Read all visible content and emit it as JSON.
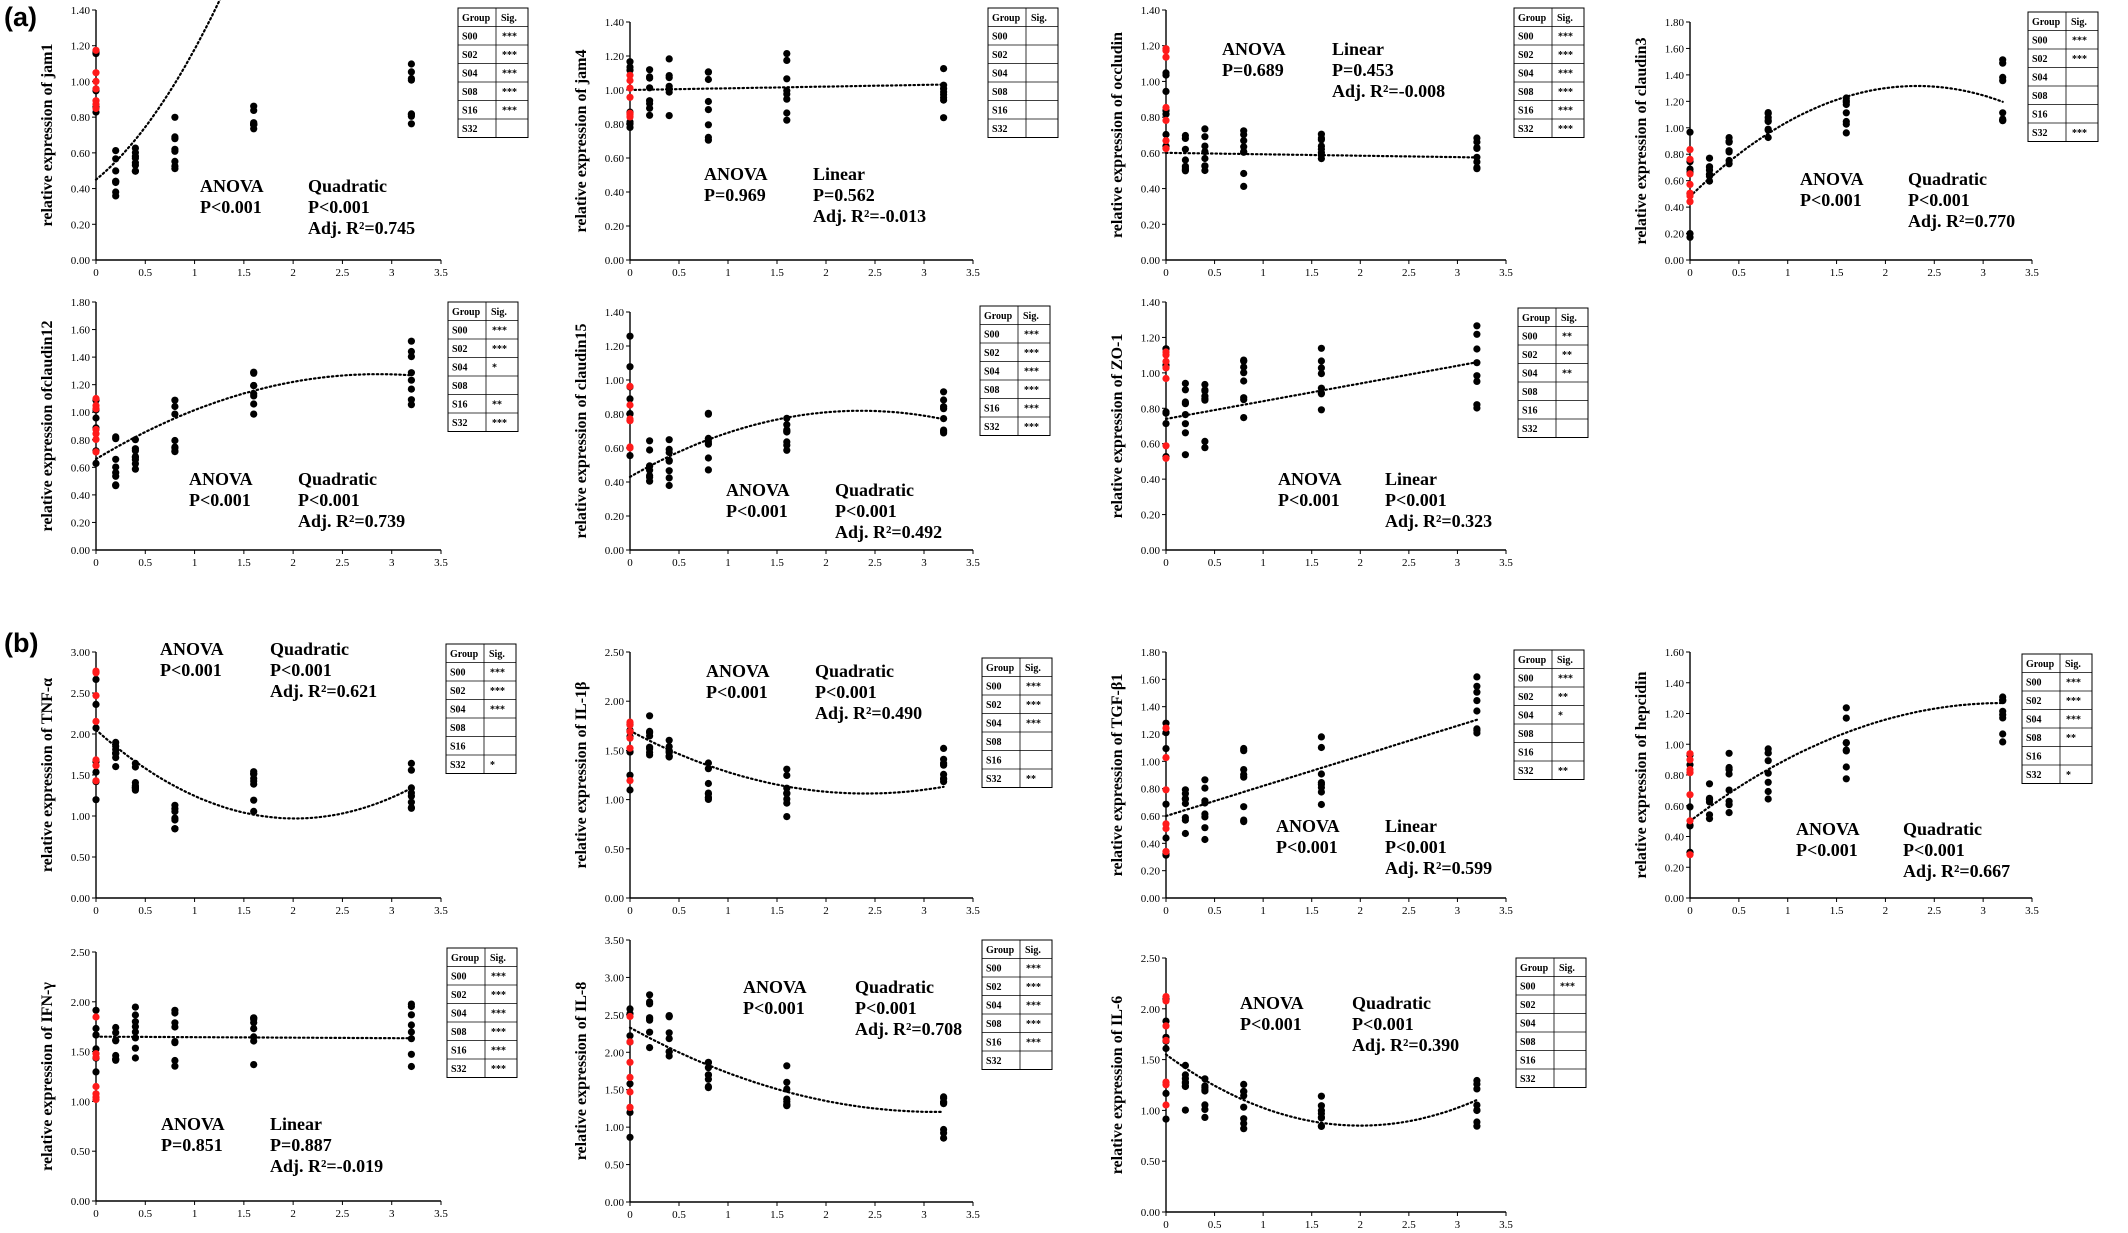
{
  "figure": {
    "panel_labels": [
      "(a)",
      "(b)"
    ],
    "table_header": [
      "Group",
      "Sig."
    ],
    "groups": [
      "S00",
      "S02",
      "S04",
      "S08",
      "S16",
      "S32"
    ],
    "x_ticks": [
      "0",
      "0.5",
      "1",
      "1.5",
      "2",
      "2.5",
      "3",
      "3.5"
    ]
  },
  "chart_data": [
    {
      "type": "scatter",
      "section": "(a)",
      "ylabel": "relative expression of jam1",
      "xlim": [
        0,
        3.5
      ],
      "ylim": [
        0,
        1.4
      ],
      "yticks": [
        "0.00",
        "0.20",
        "0.40",
        "0.60",
        "0.80",
        "1.00",
        "1.20",
        "1.40"
      ],
      "anova_label": "ANOVA",
      "anova_p": "P<0.001",
      "model": "Quadratic",
      "model_p": "P<0.001",
      "adj_r2": "Adj. R²=0.745",
      "sig": [
        "***",
        "***",
        "***",
        "***",
        "***",
        ""
      ],
      "trend": [
        0.45,
        0.45,
        0.28,
        0.0
      ],
      "table_side": "right",
      "x": [
        0,
        0.2,
        0.4,
        0.8,
        1.6,
        3.2
      ],
      "means": [
        1.0,
        0.5,
        0.56,
        0.65,
        0.78,
        0.93
      ],
      "spreads": [
        0.4,
        0.3,
        0.2,
        0.3,
        0.2,
        0.4
      ],
      "highlight_red_x0": true
    },
    {
      "type": "scatter",
      "section": "(a)",
      "ylabel": "relative expression of jam4",
      "xlim": [
        0,
        3.5
      ],
      "ylim": [
        0,
        1.4
      ],
      "yticks": [
        "0.00",
        "0.20",
        "0.40",
        "0.60",
        "0.80",
        "1.00",
        "1.20",
        "1.40"
      ],
      "anova_label": "ANOVA",
      "anova_p": "P=0.969",
      "model": "Linear",
      "model_p": "P=0.562",
      "adj_r2": "Adj. R²=-0.013",
      "sig": [
        "",
        "",
        "",
        "",
        "",
        ""
      ],
      "trend": [
        1.0,
        0.01,
        0,
        0
      ],
      "table_side": "right",
      "x": [
        0,
        0.2,
        0.4,
        0.8,
        1.6,
        3.2
      ],
      "means": [
        1.0,
        1.0,
        1.02,
        0.95,
        1.02,
        1.0
      ],
      "spreads": [
        0.5,
        0.35,
        0.35,
        0.5,
        0.45,
        0.4
      ],
      "highlight_red_x0": true
    },
    {
      "type": "scatter",
      "section": "(a)",
      "ylabel": "relative expression of occludin",
      "xlim": [
        0,
        3.5
      ],
      "ylim": [
        0,
        1.4
      ],
      "yticks": [
        "0.00",
        "0.20",
        "0.40",
        "0.60",
        "0.80",
        "1.00",
        "1.20",
        "1.40"
      ],
      "anova_label": "ANOVA",
      "anova_p": "P=0.689",
      "model": "Linear",
      "model_p": "P=0.453",
      "adj_r2": "Adj. R²=-0.008",
      "sig": [
        "***",
        "***",
        "***",
        "***",
        "***",
        "***"
      ],
      "trend": [
        0.6,
        -0.008,
        0,
        0
      ],
      "table_side": "right",
      "x": [
        0,
        0.2,
        0.4,
        0.8,
        1.6,
        3.2
      ],
      "means": [
        0.9,
        0.6,
        0.62,
        0.58,
        0.62,
        0.58
      ],
      "spreads": [
        0.6,
        0.25,
        0.3,
        0.35,
        0.2,
        0.25
      ],
      "highlight_red_x0": true
    },
    {
      "type": "scatter",
      "section": "(a)",
      "ylabel": "relative expression of claudin3",
      "xlim": [
        0,
        3.5
      ],
      "ylim": [
        0,
        1.8
      ],
      "yticks": [
        "0.00",
        "0.20",
        "0.40",
        "0.60",
        "0.80",
        "1.00",
        "1.20",
        "1.40",
        "1.60",
        "1.80"
      ],
      "anova_label": "ANOVA",
      "anova_p": "P<0.001",
      "model": "Quadratic",
      "model_p": "P<0.001",
      "adj_r2": "Adj. R²=0.770",
      "sig": [
        "***",
        "***",
        "",
        "",
        "",
        "***"
      ],
      "trend": [
        0.48,
        0.72,
        -0.155,
        0.0
      ],
      "table_side": "right",
      "x": [
        0,
        0.2,
        0.4,
        0.8,
        1.6,
        3.2
      ],
      "means": [
        0.6,
        0.68,
        0.85,
        1.02,
        1.15,
        1.3
      ],
      "spreads": [
        0.9,
        0.25,
        0.25,
        0.2,
        0.4,
        0.5
      ],
      "highlight_red_x0": true
    },
    {
      "type": "scatter",
      "section": "(a)",
      "ylabel": "relative expression ofclaudin12",
      "xlim": [
        0,
        3.5
      ],
      "ylim": [
        0,
        1.8
      ],
      "yticks": [
        "0.00",
        "0.20",
        "0.40",
        "0.60",
        "0.80",
        "1.00",
        "1.20",
        "1.40",
        "1.60",
        "1.80"
      ],
      "anova_label": "ANOVA",
      "anova_p": "P<0.001",
      "model": "Quadratic",
      "model_p": "P<0.001",
      "adj_r2": "Adj. R²=0.739",
      "sig": [
        "***",
        "***",
        "*",
        "",
        "**",
        "***"
      ],
      "trend": [
        0.66,
        0.43,
        -0.075,
        0.0
      ],
      "table_side": "right",
      "x": [
        0,
        0.2,
        0.4,
        0.8,
        1.6,
        3.2
      ],
      "means": [
        0.85,
        0.65,
        0.72,
        0.92,
        1.15,
        1.27
      ],
      "spreads": [
        0.5,
        0.4,
        0.3,
        0.45,
        0.35,
        0.55
      ],
      "highlight_red_x0": true
    },
    {
      "type": "scatter",
      "section": "(a)",
      "ylabel": "relative expression of claudin15",
      "xlim": [
        0,
        3.5
      ],
      "ylim": [
        0,
        1.4
      ],
      "yticks": [
        "0.00",
        "0.20",
        "0.40",
        "0.60",
        "0.80",
        "1.00",
        "1.20",
        "1.40"
      ],
      "anova_label": "ANOVA",
      "anova_p": "P<0.001",
      "model": "Quadratic",
      "model_p": "P<0.001",
      "adj_r2": "Adj. R²=0.492",
      "sig": [
        "***",
        "***",
        "***",
        "***",
        "***",
        "***"
      ],
      "trend": [
        0.43,
        0.33,
        -0.07,
        0.0
      ],
      "table_side": "right",
      "x": [
        0,
        0.2,
        0.4,
        0.8,
        1.6,
        3.2
      ],
      "means": [
        0.9,
        0.5,
        0.5,
        0.65,
        0.72,
        0.8
      ],
      "spreads": [
        0.8,
        0.3,
        0.4,
        0.4,
        0.3,
        0.35
      ],
      "highlight_red_x0": true
    },
    {
      "type": "scatter",
      "section": "(a)",
      "ylabel": "relative expression of ZO-1",
      "xlim": [
        0,
        3.5
      ],
      "ylim": [
        0,
        1.4
      ],
      "yticks": [
        "0.00",
        "0.20",
        "0.40",
        "0.60",
        "0.80",
        "1.00",
        "1.20",
        "1.40"
      ],
      "anova_label": "ANOVA",
      "anova_p": "P<0.001",
      "model": "Linear",
      "model_p": "P<0.001",
      "adj_r2": "Adj. R²=0.323",
      "sig": [
        "**",
        "**",
        "**",
        "",
        "",
        ""
      ],
      "trend": [
        0.74,
        0.1,
        0,
        0
      ],
      "table_side": "right",
      "x": [
        0,
        0.2,
        0.4,
        0.8,
        1.6,
        3.2
      ],
      "means": [
        0.85,
        0.75,
        0.72,
        0.9,
        0.92,
        1.05
      ],
      "spreads": [
        0.7,
        0.45,
        0.45,
        0.35,
        0.45,
        0.5
      ],
      "highlight_red_x0": true
    },
    {
      "type": "scatter",
      "section": "(b)",
      "ylabel": "relative expression of TNF-α",
      "xlim": [
        0,
        3.5
      ],
      "ylim": [
        0,
        3.0
      ],
      "yticks": [
        "0.00",
        "0.50",
        "1.00",
        "1.50",
        "2.00",
        "2.50",
        "3.00"
      ],
      "anova_label": "ANOVA",
      "anova_p": "P<0.001",
      "model": "Quadratic",
      "model_p": "P<0.001",
      "adj_r2": "Adj. R²=0.621",
      "sig": [
        "***",
        "***",
        "***",
        "",
        "",
        "*"
      ],
      "trend": [
        2.05,
        -1.07,
        0.265,
        0.0
      ],
      "table_side": "right",
      "x": [
        0,
        0.2,
        0.4,
        0.8,
        1.6,
        3.2
      ],
      "means": [
        2.0,
        1.85,
        1.55,
        1.1,
        1.25,
        1.35
      ],
      "spreads": [
        1.8,
        0.6,
        0.5,
        0.6,
        0.7,
        0.7
      ],
      "highlight_red_x0": true
    },
    {
      "type": "scatter",
      "section": "(b)",
      "ylabel": "relative expression of IL-1β",
      "xlim": [
        0,
        3.5
      ],
      "ylim": [
        0,
        2.5
      ],
      "yticks": [
        "0.00",
        "0.50",
        "1.00",
        "1.50",
        "2.00",
        "2.50"
      ],
      "anova_label": "ANOVA",
      "anova_p": "P<0.001",
      "model": "Quadratic",
      "model_p": "P<0.001",
      "adj_r2": "Adj. R²=0.490",
      "sig": [
        "***",
        "***",
        "***",
        "",
        "",
        "**"
      ],
      "trend": [
        1.7,
        -0.53,
        0.11,
        0.0
      ],
      "table_side": "right",
      "x": [
        0,
        0.2,
        0.4,
        0.8,
        1.6,
        3.2
      ],
      "means": [
        1.4,
        1.7,
        1.6,
        1.25,
        1.05,
        1.35
      ],
      "spreads": [
        1.1,
        0.5,
        0.5,
        0.6,
        0.55,
        0.4
      ],
      "highlight_red_x0": true
    },
    {
      "type": "scatter",
      "section": "(b)",
      "ylabel": "relative expression of TGF-β1",
      "xlim": [
        0,
        3.5
      ],
      "ylim": [
        0,
        1.8
      ],
      "yticks": [
        "0.00",
        "0.20",
        "0.40",
        "0.60",
        "0.80",
        "1.00",
        "1.20",
        "1.40",
        "1.60",
        "1.80"
      ],
      "anova_label": "ANOVA",
      "anova_p": "P<0.001",
      "model": "Linear",
      "model_p": "P<0.001",
      "adj_r2": "Adj. R²=0.599",
      "sig": [
        "***",
        "**",
        "*",
        "",
        "",
        "**"
      ],
      "trend": [
        0.6,
        0.22,
        0,
        0
      ],
      "table_side": "right",
      "x": [
        0,
        0.2,
        0.4,
        0.8,
        1.6,
        3.2
      ],
      "means": [
        0.8,
        0.6,
        0.62,
        0.8,
        0.95,
        1.3
      ],
      "spreads": [
        1.0,
        0.5,
        0.5,
        0.6,
        0.55,
        0.7
      ],
      "highlight_red_x0": true
    },
    {
      "type": "scatter",
      "section": "(b)",
      "ylabel": "relative expression of hepcidin",
      "xlim": [
        0,
        3.5
      ],
      "ylim": [
        0,
        1.6
      ],
      "yticks": [
        "0.00",
        "0.20",
        "0.40",
        "0.60",
        "0.80",
        "1.00",
        "1.20",
        "1.40",
        "1.60"
      ],
      "anova_label": "ANOVA",
      "anova_p": "P<0.001",
      "model": "Quadratic",
      "model_p": "P<0.001",
      "adj_r2": "Adj. R²=0.667",
      "sig": [
        "***",
        "***",
        "***",
        "**",
        "",
        "*"
      ],
      "trend": [
        0.5,
        0.48,
        -0.075,
        0.0
      ],
      "table_side": "right",
      "x": [
        0,
        0.2,
        0.4,
        0.8,
        1.6,
        3.2
      ],
      "means": [
        0.7,
        0.65,
        0.75,
        0.8,
        1.0,
        1.2
      ],
      "spreads": [
        0.9,
        0.5,
        0.45,
        0.4,
        0.5,
        0.55
      ],
      "highlight_red_x0": true
    },
    {
      "type": "scatter",
      "section": "(b)",
      "ylabel": "relative expression of IFN-γ",
      "xlim": [
        0,
        3.5
      ],
      "ylim": [
        0,
        2.5
      ],
      "yticks": [
        "0.00",
        "0.50",
        "1.00",
        "1.50",
        "2.00",
        "2.50"
      ],
      "anova_label": "ANOVA",
      "anova_p": "P=0.851",
      "model": "Linear",
      "model_p": "P=0.887",
      "adj_r2": "Adj. R²=-0.019",
      "sig": [
        "***",
        "***",
        "***",
        "***",
        "***",
        "***"
      ],
      "trend": [
        1.65,
        -0.005,
        0,
        0
      ],
      "table_side": "right",
      "x": [
        0,
        0.2,
        0.4,
        0.8,
        1.6,
        3.2
      ],
      "means": [
        1.45,
        1.6,
        1.7,
        1.6,
        1.65,
        1.65
      ],
      "spreads": [
        1.0,
        0.5,
        0.55,
        0.65,
        0.6,
        0.75
      ],
      "highlight_red_x0": true
    },
    {
      "type": "scatter",
      "section": "(b)",
      "ylabel": "relative expression of IL-8",
      "xlim": [
        0,
        3.5
      ],
      "ylim": [
        0,
        3.5
      ],
      "yticks": [
        "0.00",
        "0.50",
        "1.00",
        "1.50",
        "2.00",
        "2.50",
        "3.00",
        "3.50"
      ],
      "anova_label": "ANOVA",
      "anova_p": "P<0.001",
      "model": "Quadratic",
      "model_p": "P<0.001",
      "adj_r2": "Adj. R²=0.708",
      "sig": [
        "***",
        "***",
        "***",
        "***",
        "***",
        ""
      ],
      "trend": [
        2.33,
        -0.72,
        0.115,
        0.0
      ],
      "table_side": "right",
      "x": [
        0,
        0.2,
        0.4,
        0.8,
        1.6,
        3.2
      ],
      "means": [
        1.8,
        2.4,
        2.2,
        1.8,
        1.55,
        1.15
      ],
      "spreads": [
        1.9,
        0.8,
        0.6,
        0.7,
        0.6,
        0.65
      ],
      "highlight_red_x0": true
    },
    {
      "type": "scatter",
      "section": "(b)",
      "ylabel": "relative expression of IL-6",
      "xlim": [
        0,
        3.5
      ],
      "ylim": [
        0,
        2.5
      ],
      "yticks": [
        "0.00",
        "0.50",
        "1.00",
        "1.50",
        "2.00",
        "2.50"
      ],
      "anova_label": "ANOVA",
      "anova_p": "P<0.001",
      "model": "Quadratic",
      "model_p": "P<0.001",
      "adj_r2": "Adj. R²=0.390",
      "sig": [
        "***",
        "",
        "",
        "",
        "",
        ""
      ],
      "trend": [
        1.55,
        -0.7,
        0.175,
        0.0
      ],
      "table_side": "right",
      "x": [
        0,
        0.2,
        0.4,
        0.8,
        1.6,
        3.2
      ],
      "means": [
        1.5,
        1.25,
        1.1,
        1.05,
        1.0,
        1.05
      ],
      "spreads": [
        1.3,
        0.5,
        0.5,
        0.5,
        0.45,
        0.5
      ],
      "highlight_red_x0": true
    }
  ],
  "colors": {
    "control_points": "#ff1a1a",
    "points": "#000000",
    "axes": "#000000"
  }
}
